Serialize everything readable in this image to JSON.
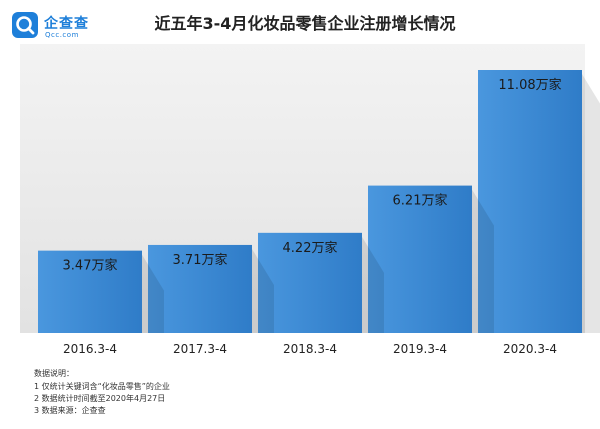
{
  "brand": {
    "name": "企查查",
    "domain": "Qcc.com",
    "icon": "magnifier-q-logo-icon",
    "color": "#1e7fd9"
  },
  "notes": {
    "title": "数据说明：",
    "lines": [
      "1 仅统计关键词含“化妆品零售”的企业",
      "2 数据统计时间截至2020年4月27日",
      "3 数据来源：企查查"
    ]
  },
  "chart_data": {
    "type": "bar",
    "title": "近五年3-4月化妆品零售企业注册增长情况",
    "categories": [
      "2016.3-4",
      "2017.3-4",
      "2018.3-4",
      "2019.3-4",
      "2020.3-4"
    ],
    "values": [
      3.47,
      3.71,
      4.22,
      6.21,
      11.08
    ],
    "data_labels": [
      "3.47万家",
      "3.71万家",
      "4.22万家",
      "6.21万家",
      "11.08万家"
    ],
    "xlabel": "",
    "ylabel": "",
    "ylim": [
      0,
      11.08
    ],
    "grid": false,
    "legend": "none",
    "colors": {
      "bar": "#3f8fd8",
      "bar_dark": "#2e78c4",
      "label": "#1a1a1a",
      "background": "#e9e9e9"
    }
  }
}
